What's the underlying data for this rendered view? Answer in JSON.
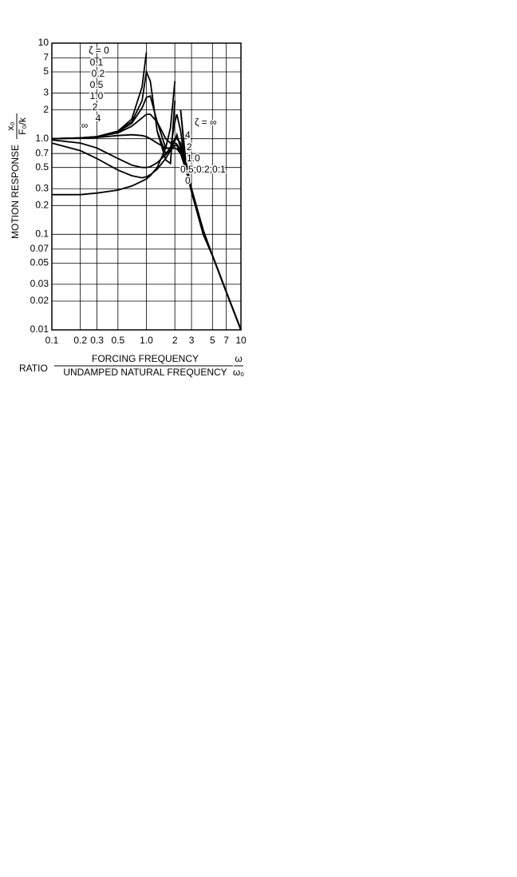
{
  "chart_data": {
    "type": "line",
    "log_x": true,
    "log_y": true,
    "grid": true,
    "y_label": "MOTION RESPONSE",
    "y_label_numerator": "x₀",
    "y_label_denominator": "F₀/k",
    "x_label_prefix": "RATIO",
    "x_label_numerator": "FORCING FREQUENCY",
    "x_label_denominator": "UNDAMPED NATURAL FREQUENCY",
    "x_symbol_numerator": "ω",
    "x_symbol_denominator": "ω₀",
    "xlim": [
      0.1,
      10
    ],
    "ylim": [
      0.01,
      10
    ],
    "xticks": [
      0.1,
      0.2,
      0.3,
      0.5,
      {
        "value": 1,
        "label": "1.0"
      },
      2,
      3,
      5,
      7,
      10
    ],
    "yticks": [
      0.01,
      0.02,
      0.03,
      0.05,
      0.07,
      0.1,
      0.2,
      0.3,
      0.5,
      0.7,
      {
        "value": 1,
        "label": "1.0"
      },
      2,
      3,
      5,
      7,
      10
    ],
    "x": [
      0.1,
      0.2,
      0.3,
      0.5,
      0.7,
      0.9,
      1.0,
      1.1,
      1.3,
      1.6,
      1.8,
      2.0,
      2.1,
      2.3,
      2.6,
      3,
      4,
      5,
      7,
      10
    ],
    "series": [
      {
        "name": "ζ = 0",
        "color": "#000",
        "values": [
          1.0,
          1.02,
          1.05,
          1.2,
          1.6,
          3.5,
          8,
          null,
          1.2,
          0.6,
          0.55,
          2.5,
          null,
          2,
          0.6,
          0.3,
          0.1,
          0.06,
          0.025,
          0.01
        ]
      },
      {
        "name": "0.1",
        "color": "#000",
        "values": [
          1.0,
          1.02,
          1.05,
          1.2,
          1.5,
          2.5,
          5,
          4,
          1.2,
          0.7,
          0.8,
          1.5,
          1.8,
          1.2,
          0.5,
          0.28,
          0.1,
          0.06,
          0.025,
          0.01
        ]
      },
      {
        "name": "0.2",
        "color": "#000",
        "values": [
          1.0,
          1.02,
          1.05,
          1.18,
          1.45,
          2.1,
          2.7,
          2.8,
          1.5,
          0.8,
          0.8,
          1.0,
          1.0,
          0.9,
          0.5,
          0.28,
          0.1,
          0.06,
          0.025,
          0.01
        ]
      },
      {
        "name": "0.5",
        "color": "#000",
        "values": [
          1.0,
          1.02,
          1.05,
          1.15,
          1.35,
          1.65,
          1.8,
          1.8,
          1.5,
          1.0,
          0.9,
          0.9,
          0.88,
          0.75,
          0.5,
          0.28,
          0.1,
          0.06,
          0.025,
          0.01
        ]
      },
      {
        "name": "1.0",
        "color": "#000",
        "values": [
          1.0,
          1.01,
          1.03,
          1.08,
          1.1,
          1.08,
          1.05,
          1.0,
          0.9,
          0.8,
          0.78,
          0.8,
          0.78,
          0.7,
          0.5,
          0.3,
          0.1,
          0.06,
          0.025,
          0.01
        ]
      },
      {
        "name": "2",
        "color": "#000",
        "values": [
          0.97,
          0.9,
          0.8,
          0.62,
          0.53,
          0.5,
          0.5,
          0.51,
          0.56,
          0.68,
          0.78,
          0.85,
          0.85,
          0.7,
          0.48,
          0.3,
          0.11,
          0.06,
          0.025,
          0.01
        ]
      },
      {
        "name": "4",
        "color": "#000",
        "values": [
          0.9,
          0.75,
          0.62,
          0.47,
          0.41,
          0.39,
          0.4,
          0.42,
          0.48,
          0.62,
          0.75,
          0.95,
          1.1,
          0.8,
          0.5,
          0.3,
          0.11,
          0.06,
          0.025,
          0.01
        ]
      },
      {
        "name": "∞",
        "color": "#000",
        "values": [
          0.26,
          0.26,
          0.27,
          0.29,
          0.32,
          0.36,
          0.38,
          0.41,
          0.5,
          0.8,
          1.3,
          4,
          null,
          2,
          0.55,
          0.28,
          0.1,
          0.06,
          0.025,
          0.01
        ]
      }
    ],
    "annotations": [
      "ζ = ∞",
      "4",
      "2",
      "1.0",
      "0.5,0.2,0.1",
      "0"
    ]
  }
}
